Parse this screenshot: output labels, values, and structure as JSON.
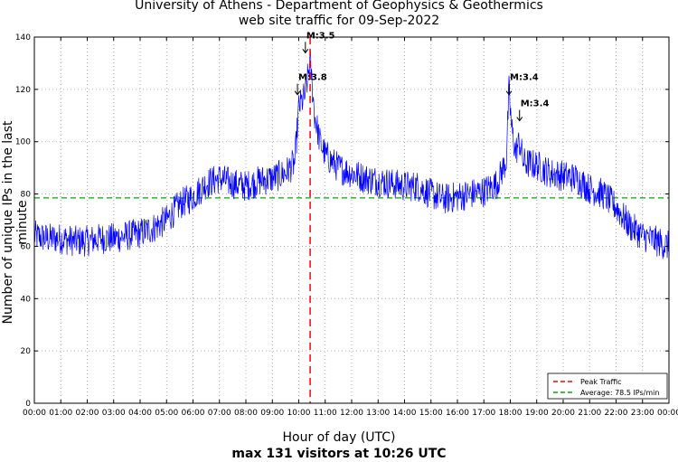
{
  "chart_data": {
    "type": "line",
    "title_line1": "University of Athens - Department of Geophysics & Geothermics",
    "title_line2": "web site traffic for 09-Sep-2022",
    "xlabel": "Hour of day (UTC)",
    "xlabel_sub": "max 131 visitors at 10:26 UTC",
    "ylabel": "Number of unique IPs in the last minute",
    "xlim": [
      0,
      24
    ],
    "ylim": [
      0,
      140
    ],
    "grid": true,
    "x_ticks": [
      "00:00",
      "01:00",
      "02:00",
      "03:00",
      "04:00",
      "05:00",
      "06:00",
      "07:00",
      "08:00",
      "09:00",
      "10:00",
      "11:00",
      "12:00",
      "13:00",
      "14:00",
      "15:00",
      "16:00",
      "17:00",
      "18:00",
      "19:00",
      "20:00",
      "21:00",
      "22:00",
      "23:00",
      "00:00"
    ],
    "y_ticks": [
      0,
      20,
      40,
      60,
      80,
      100,
      120,
      140
    ],
    "series": [
      {
        "name": "traffic",
        "color": "#0000ff",
        "x_hours": [
          0,
          0.5,
          1,
          1.5,
          2,
          2.5,
          3,
          3.5,
          4,
          4.5,
          5,
          5.5,
          6,
          6.5,
          7,
          7.5,
          8,
          8.5,
          9,
          9.5,
          9.85,
          10,
          10.1,
          10.25,
          10.43,
          10.6,
          10.8,
          11,
          11.5,
          12,
          12.5,
          13,
          13.5,
          14,
          14.5,
          15,
          15.5,
          16,
          16.5,
          17,
          17.5,
          17.85,
          17.95,
          18.05,
          18.2,
          18.35,
          18.5,
          19,
          19.5,
          20,
          20.5,
          21,
          21.5,
          22,
          22.5,
          23,
          23.5,
          24
        ],
        "y_values": [
          64,
          63,
          63,
          62,
          62,
          63,
          63,
          64,
          65,
          67,
          70,
          76,
          79,
          84,
          86,
          84,
          83,
          85,
          86,
          88,
          92,
          113,
          115,
          118,
          131,
          110,
          100,
          95,
          90,
          88,
          86,
          85,
          84,
          83,
          83,
          80,
          78,
          79,
          80,
          81,
          84,
          93,
          120,
          105,
          96,
          100,
          92,
          91,
          88,
          87,
          86,
          82,
          80,
          75,
          68,
          64,
          62,
          60
        ],
        "noise_amplitude": 6
      }
    ],
    "average_line": {
      "value": 78.5,
      "color": "#00aa00"
    },
    "peak_line": {
      "x_hours": 10.43,
      "color": "#ff0000"
    },
    "legend": {
      "position": "bottom-right",
      "entries": [
        "Peak Traffic",
        "Average: 78.5 IPs/min"
      ]
    },
    "annotations": [
      {
        "label": "M:3.8",
        "x_hours": 9.95,
        "y_value": 118
      },
      {
        "label": "M:3.5",
        "x_hours": 10.25,
        "y_value": 134
      },
      {
        "label": "M:3.4",
        "x_hours": 17.95,
        "y_value": 118
      },
      {
        "label": "M:3.4",
        "x_hours": 18.35,
        "y_value": 108
      }
    ]
  }
}
